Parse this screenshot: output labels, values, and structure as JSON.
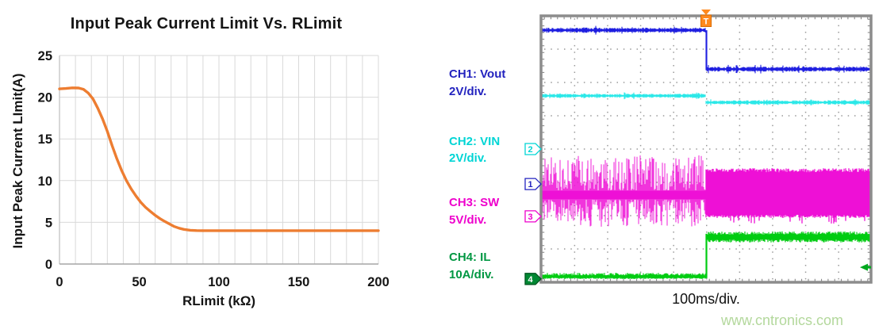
{
  "chart_data": [
    {
      "type": "line",
      "title": "Input Peak Current Limit Vs. RLimit",
      "xlabel": "RLimit (kΩ)",
      "ylabel": "Input Peak Current LImit(A)",
      "xlim": [
        0,
        200
      ],
      "ylim": [
        0,
        25
      ],
      "x_ticks": [
        0,
        50,
        100,
        150,
        200
      ],
      "y_ticks": [
        0,
        5,
        10,
        15,
        20,
        25
      ],
      "x_grid_step": 10,
      "y_grid_step": 5,
      "grid": true,
      "legend": "none",
      "colors": {
        "curve": "#ED7D31",
        "grid": "#D9D9D9",
        "axis_x": "#A6A6A6",
        "axis_y": "#BFBFBF",
        "text": "#151515"
      },
      "series": [
        {
          "name": "Input Peak Current Limit",
          "color": "#ED7D31",
          "points": [
            [
              0,
              21.0
            ],
            [
              4,
              21.05
            ],
            [
              8,
              21.12
            ],
            [
              12,
              21.1
            ],
            [
              15,
              20.95
            ],
            [
              18,
              20.5
            ],
            [
              21,
              19.8
            ],
            [
              24,
              18.7
            ],
            [
              27,
              17.4
            ],
            [
              30,
              15.9
            ],
            [
              33,
              14.2
            ],
            [
              36,
              12.6
            ],
            [
              39,
              11.2
            ],
            [
              42,
              10.0
            ],
            [
              45,
              9.0
            ],
            [
              48,
              8.15
            ],
            [
              51,
              7.4
            ],
            [
              54,
              6.8
            ],
            [
              57,
              6.3
            ],
            [
              60,
              5.85
            ],
            [
              63,
              5.45
            ],
            [
              66,
              5.1
            ],
            [
              69,
              4.8
            ],
            [
              72,
              4.5
            ],
            [
              75,
              4.3
            ],
            [
              78,
              4.15
            ],
            [
              82,
              4.05
            ],
            [
              86,
              4.01
            ],
            [
              90,
              4.0
            ],
            [
              100,
              4.0
            ],
            [
              110,
              4.0
            ],
            [
              125,
              4.0
            ],
            [
              150,
              4.0
            ],
            [
              175,
              4.0
            ],
            [
              200,
              4.0
            ]
          ]
        }
      ]
    },
    {
      "type": "oscilloscope",
      "timebase": "100ms/div.",
      "divisions": {
        "x": 10,
        "y": 8
      },
      "trigger": {
        "label": "T",
        "position_x_div": 5,
        "color": "#FF8A1E",
        "outline": "#D96A00"
      },
      "watermark": "www.cntronics.com",
      "grid_dot_color": "#999999",
      "frame_color": "#8C8C8C",
      "channels": [
        {
          "label": "CH1: Vout",
          "scale": "2V/div.",
          "marker": "1",
          "label_color": "#2323BF",
          "trace_color": "#1E1EE0",
          "behavior": "step-down",
          "pre_trigger_level_div": 0.43,
          "post_trigger_level_div": 1.6,
          "zero_marker_div": 5.05
        },
        {
          "label": "CH2: VIN",
          "scale": "2V/div.",
          "marker": "2",
          "label_color": "#00D5D5",
          "trace_color": "#2BE8E8",
          "behavior": "slight-step-down",
          "pre_trigger_level_div": 2.4,
          "post_trigger_level_div": 2.6,
          "zero_marker_div": 4.0
        },
        {
          "label": "CH3: SW",
          "scale": "5V/div.",
          "marker": "3",
          "label_color": "#EE00CC",
          "trace_color": "#EE10D6",
          "behavior": "sparse-bursts-then-dense",
          "pre_core_band_div": [
            5.24,
            5.52
          ],
          "pre_spike_extent_div": [
            4.19,
            6.33
          ],
          "post_band_div": [
            4.6,
            6.07
          ],
          "zero_marker_div": 6.02
        },
        {
          "label": "CH4: IL",
          "scale": "10A/div.",
          "marker": "4",
          "label_color": "#009742",
          "trace_color": "#00CC11",
          "behavior": "step-up",
          "pre_trigger_level_div": 7.83,
          "post_trigger_level_div": 6.64,
          "zero_marker_div": 7.9,
          "right_edge_arrow_div": 7.55
        }
      ]
    }
  ]
}
